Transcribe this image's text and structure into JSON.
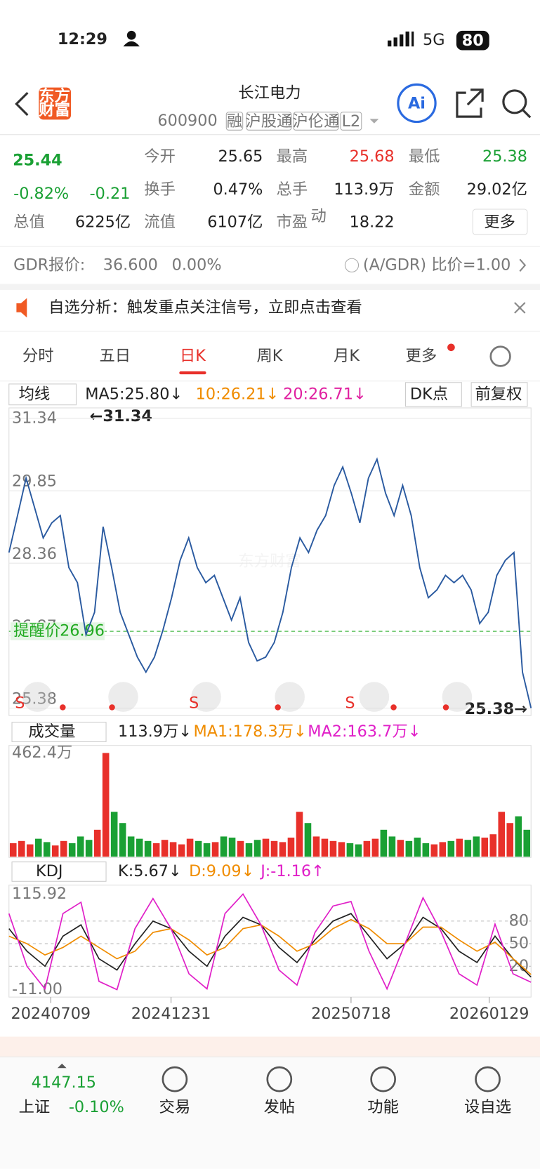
{
  "status": {
    "time": "12:29",
    "network": "5G",
    "battery": "80"
  },
  "header": {
    "logo": [
      "东方",
      "财富"
    ],
    "name": "长江电力",
    "code": "600900",
    "tags": [
      "融",
      "沪股通",
      "沪伦通",
      "L2"
    ],
    "ai": "Ai"
  },
  "quote": {
    "price": "25.44",
    "change_pct": "-0.82%",
    "change": "-0.21",
    "fields": [
      {
        "label": "今开",
        "value": "25.65"
      },
      {
        "label": "最高",
        "value": "25.68",
        "color": "#e8302a"
      },
      {
        "label": "最低",
        "value": "25.38",
        "color": "#1aa034"
      },
      {
        "label": "换手",
        "value": "0.47%"
      },
      {
        "label": "总手",
        "value": "113.9万"
      },
      {
        "label": "金额",
        "value": "29.02亿"
      },
      {
        "label": "总值",
        "value": "6225亿"
      },
      {
        "label": "流值",
        "value": "6107亿"
      },
      {
        "label": "市盈",
        "value": "18.22",
        "sup": "动"
      }
    ],
    "more": "更多"
  },
  "gdr": {
    "label": "GDR报价:",
    "value": "36.600",
    "pct": "0.00%",
    "ratio": "(A/GDR) 比价=1.00"
  },
  "notice": "自选分析：触发重点关注信号，立即点击查看",
  "tabs": [
    "分时",
    "五日",
    "日K",
    "周K",
    "月K",
    "更多"
  ],
  "active_tab": 2,
  "toolbar": {
    "ma": "均线",
    "ma5": "MA5:25.80↓",
    "ma10": "10:26.21↓",
    "ma20": "20:26.71↓",
    "dk": "DK点",
    "adjust": "前复权"
  },
  "price_chart": {
    "type": "line",
    "color": "#2a5aa0",
    "ylim": [
      25.38,
      31.34
    ],
    "yticks": [
      31.34,
      29.85,
      28.36,
      26.87,
      25.38
    ],
    "max_label": "←31.34",
    "last_label": "25.38→",
    "watermark": "东方财富",
    "alert": {
      "label": "提醒价",
      "value": 26.96
    },
    "signals": [
      "S",
      "S",
      "S"
    ],
    "values": [
      28.58,
      29.34,
      30.11,
      29.5,
      28.88,
      29.19,
      29.34,
      28.27,
      27.96,
      26.89,
      27.35,
      29.11,
      28.27,
      27.35,
      26.89,
      26.43,
      26.12,
      26.43,
      26.99,
      27.65,
      28.42,
      28.88,
      28.27,
      27.96,
      28.11,
      27.65,
      27.19,
      27.65,
      26.73,
      26.35,
      26.43,
      26.73,
      27.35,
      28.27,
      28.88,
      28.58,
      29.04,
      29.34,
      29.96,
      30.34,
      29.8,
      29.19,
      30.11,
      30.5,
      29.8,
      29.34,
      29.96,
      29.34,
      28.27,
      27.65,
      27.81,
      28.11,
      27.96,
      28.11,
      27.81,
      27.12,
      27.35,
      28.11,
      28.42,
      28.58,
      26.12,
      25.38
    ]
  },
  "volume_chart": {
    "type": "bar",
    "label": "成交量",
    "current": "113.9万↓",
    "ma1": "MA1:178.3万↓",
    "ma2": "MA2:163.7万↓",
    "ylim": [
      0,
      462.4
    ],
    "yticks": [
      {
        "value": 462.4,
        "label": "462.4万"
      }
    ],
    "up_color": "#e8302a",
    "down_color": "#1aa034",
    "values": [
      60,
      70,
      55,
      80,
      65,
      50,
      70,
      60,
      90,
      75,
      120,
      462,
      200,
      150,
      90,
      80,
      70,
      60,
      75,
      65,
      55,
      80,
      70,
      60,
      65,
      90,
      85,
      70,
      60,
      75,
      80,
      70,
      65,
      85,
      200,
      150,
      90,
      80,
      70,
      65,
      60,
      55,
      70,
      80,
      120,
      90,
      75,
      70,
      85,
      60,
      55,
      65,
      70,
      80,
      75,
      90,
      85,
      100,
      200,
      150,
      180,
      120
    ]
  },
  "kdj_chart": {
    "type": "line",
    "label": "KDJ",
    "ylim": [
      -11,
      115.92
    ],
    "yticks": [
      115.92,
      {
        "value": -11,
        "label": "-11.00"
      }
    ],
    "y2ticks": [
      80,
      50,
      20
    ],
    "series": [
      {
        "name": "K:5.67↓",
        "color": "#222222",
        "values": [
          70,
          40,
          20,
          60,
          75,
          30,
          15,
          50,
          80,
          70,
          40,
          20,
          60,
          85,
          75,
          45,
          25,
          55,
          80,
          90,
          60,
          30,
          50,
          85,
          70,
          40,
          25,
          60,
          30,
          5.67
        ]
      },
      {
        "name": "D:9.09↓",
        "color": "#f08c00",
        "values": [
          60,
          50,
          35,
          45,
          60,
          45,
          30,
          40,
          65,
          70,
          55,
          35,
          45,
          70,
          75,
          60,
          40,
          50,
          70,
          82,
          70,
          50,
          50,
          72,
          72,
          55,
          40,
          52,
          30,
          9.09
        ]
      },
      {
        "name": "J:-1.16↑",
        "color": "#e020c8",
        "values": [
          90,
          20,
          -10,
          90,
          105,
          0,
          -11,
          70,
          110,
          70,
          10,
          -10,
          90,
          115.92,
          75,
          15,
          -5,
          65,
          100,
          106,
          40,
          -10,
          50,
          111,
          66,
          10,
          -5,
          76,
          10,
          -1.16
        ]
      }
    ],
    "x_labels": [
      "20240709",
      "20241231",
      "20250718",
      "20260129"
    ]
  },
  "bottom": {
    "index_value": "4147.15",
    "index_name": "上证",
    "index_pct": "-0.10%",
    "items": [
      "交易",
      "发帖",
      "功能",
      "设自选"
    ]
  }
}
